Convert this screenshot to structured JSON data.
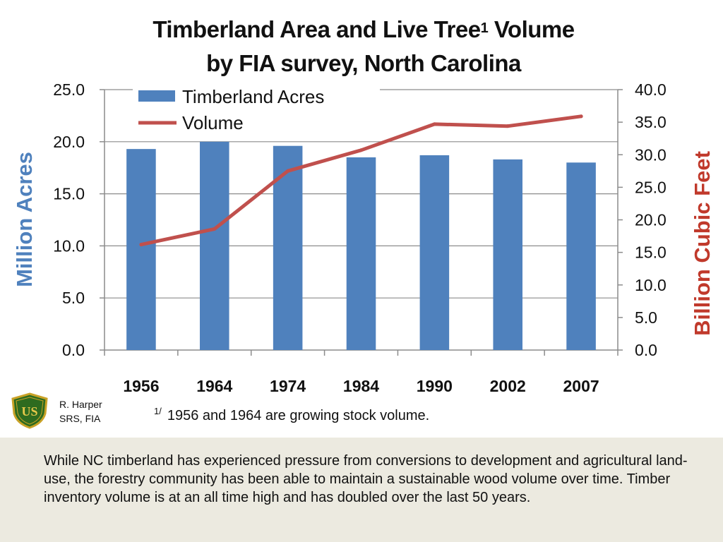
{
  "title": {
    "line1_main": "Timberland Area and Live Tree",
    "line1_sup": "1",
    "line1_end": " Volume",
    "line2": "by FIA survey, North Carolina"
  },
  "chart_data": {
    "type": "bar",
    "categories": [
      "1956",
      "1964",
      "1974",
      "1984",
      "1990",
      "2002",
      "2007"
    ],
    "series": [
      {
        "name": "Timberland Acres",
        "type": "bar",
        "axis": "left",
        "color": "#4f81bd",
        "values": [
          19.3,
          20.0,
          19.6,
          18.5,
          18.7,
          18.3,
          18.0
        ]
      },
      {
        "name": "Volume",
        "type": "line",
        "axis": "right",
        "color": "#c0504d",
        "values": [
          16.2,
          18.6,
          27.5,
          30.7,
          34.7,
          34.4,
          35.9
        ]
      }
    ],
    "y_left": {
      "label": "Million Acres",
      "min": 0,
      "max": 25,
      "step": 5,
      "ticks": [
        "0.0",
        "5.0",
        "10.0",
        "15.0",
        "20.0",
        "25.0"
      ]
    },
    "y_right": {
      "label": "Billion Cubic Feet",
      "min": 0,
      "max": 40,
      "step": 5,
      "ticks": [
        "0.0",
        "5.0",
        "10.0",
        "15.0",
        "20.0",
        "25.0",
        "30.0",
        "35.0",
        "40.0"
      ]
    },
    "grid": "horizontal",
    "legend_position": "top-left"
  },
  "credit": {
    "line1": "R. Harper",
    "line2": "SRS, FIA"
  },
  "footnote": {
    "marker": "1/",
    "text": "1956 and 1964 are growing stock volume."
  },
  "logo": {
    "icon": "forest-service-shield-icon",
    "letters": "US",
    "text": "FOREST SERVICE"
  },
  "caption": "While NC timberland has experienced pressure from conversions to development and agricultural land-use, the forestry community has been able to maintain a sustainable wood volume over time.  Timber inventory volume is at an all time high and has doubled over the last 50 years."
}
